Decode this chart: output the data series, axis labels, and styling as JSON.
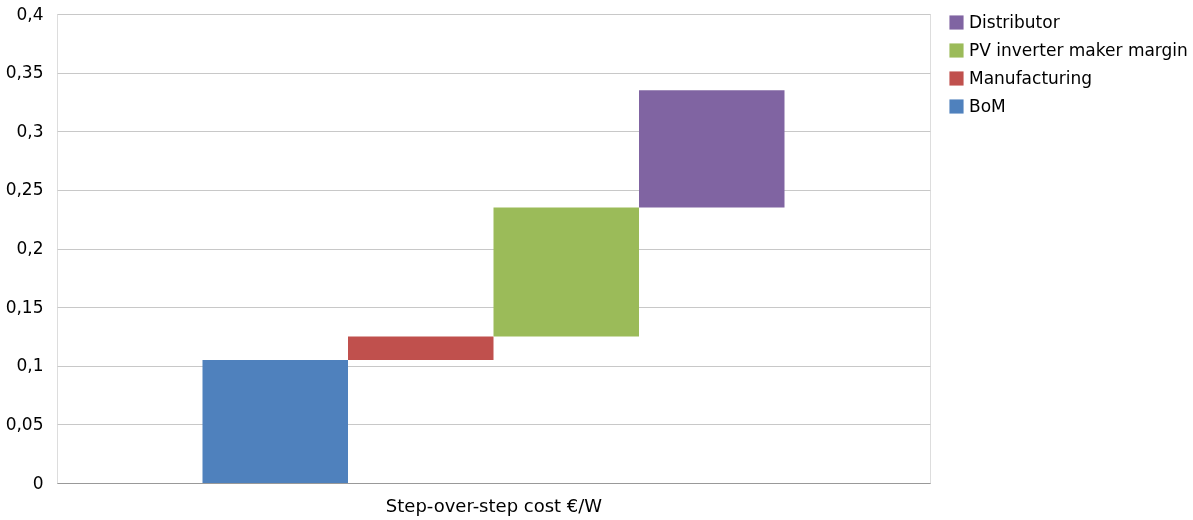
{
  "chart_data": {
    "type": "bar",
    "xlabel": "Step-over-step cost €/W",
    "categories": [
      null,
      null,
      null,
      null
    ],
    "series": [
      {
        "name": "BoM",
        "color": "#4f81bd",
        "values": [
          0.105,
          null,
          null,
          null
        ],
        "base": [
          0,
          null,
          null,
          null
        ]
      },
      {
        "name": "Manufacturing",
        "color": "#c0504d",
        "values": [
          null,
          0.02,
          null,
          null
        ],
        "base": [
          null,
          0.105,
          null,
          null
        ]
      },
      {
        "name": "PV inverter maker margin",
        "color": "#9bbb59",
        "values": [
          null,
          null,
          0.11,
          null
        ],
        "base": [
          null,
          null,
          0.125,
          null
        ]
      },
      {
        "name": "Distributor",
        "color": "#8064a2",
        "values": [
          null,
          null,
          null,
          0.1
        ],
        "base": [
          null,
          null,
          null,
          0.235
        ]
      }
    ],
    "ylim": [
      0,
      0.4
    ],
    "yticks": [
      {
        "value": 0,
        "label": "0"
      },
      {
        "value": 0.05,
        "label": "0,05"
      },
      {
        "value": 0.1,
        "label": "0,1"
      },
      {
        "value": 0.15,
        "label": "0,15"
      },
      {
        "value": 0.2,
        "label": "0,2"
      },
      {
        "value": 0.25,
        "label": "0,25"
      },
      {
        "value": 0.3,
        "label": "0,3"
      },
      {
        "value": 0.35,
        "label": "0,35"
      },
      {
        "value": 0.4,
        "label": "0,4"
      }
    ],
    "grid": "y",
    "legend": "right"
  }
}
